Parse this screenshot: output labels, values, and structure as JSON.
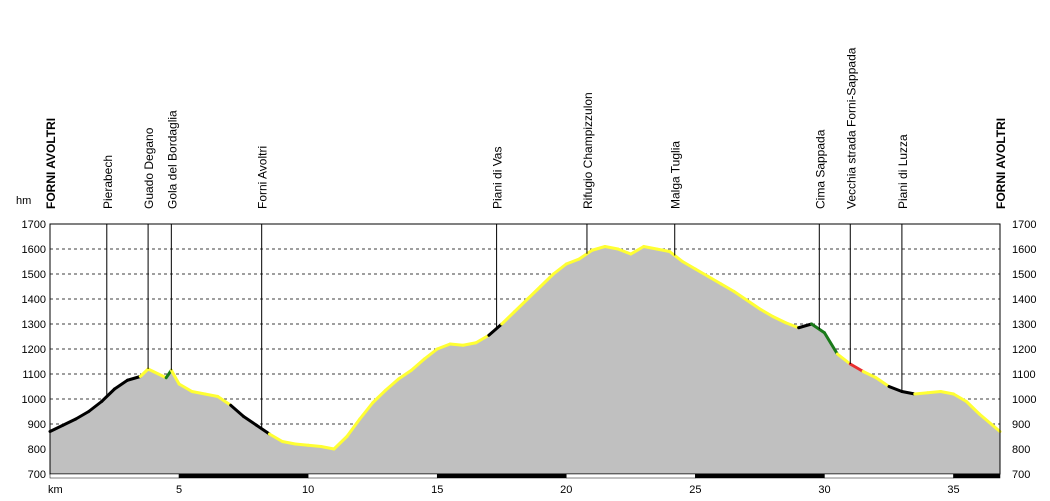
{
  "chart_data": {
    "type": "area",
    "title": "",
    "xlabel": "km",
    "ylabel": "hm",
    "xlim": [
      0,
      36.8
    ],
    "ylim": [
      700,
      1700
    ],
    "x_ticks": [
      5,
      10,
      15,
      20,
      25,
      30,
      35
    ],
    "y_ticks": [
      700,
      800,
      900,
      1000,
      1100,
      1200,
      1300,
      1400,
      1500,
      1600,
      1700
    ],
    "grid": true,
    "colors": {
      "fill": "#c0c0c0",
      "easy_segment": "#ffff33",
      "moderate_segment": "#000000",
      "steep_segment": "#1a7a1a",
      "hard_segment": "#e83030",
      "plot_border": "#000000",
      "gridline": "#000000"
    },
    "waypoints": [
      {
        "name": "FORNI AVOLTRI",
        "km": 0,
        "bold": true
      },
      {
        "name": "Pierabech",
        "km": 2.2
      },
      {
        "name": "Guado Degano",
        "km": 3.8
      },
      {
        "name": "Gola del Bordaglia",
        "km": 4.7
      },
      {
        "name": "Forni Avoltri",
        "km": 8.2
      },
      {
        "name": "Piani di Vas",
        "km": 17.3
      },
      {
        "name": "Rifugio Champizzulon",
        "km": 20.8
      },
      {
        "name": "Malga Tuglia",
        "km": 24.2
      },
      {
        "name": "Cima Sappada",
        "km": 29.8
      },
      {
        "name": "Vecchia strada Forni-Sappada",
        "km": 31.0
      },
      {
        "name": "Piani di Luzza",
        "km": 33.0
      },
      {
        "name": "FORNI AVOLTRI",
        "km": 36.8,
        "bold": true
      }
    ],
    "series": [
      {
        "x": [
          0,
          0.5,
          1,
          1.5,
          2,
          2.5,
          3,
          3.5,
          3.8,
          4.2,
          4.5,
          4.7,
          5,
          5.5,
          6,
          6.5,
          7,
          7.5,
          8,
          8.5,
          9,
          9.5,
          10,
          10.5,
          11,
          11.5,
          12,
          12.5,
          13,
          13.5,
          14,
          14.5,
          15,
          15.5,
          16,
          16.5,
          17,
          17.5,
          18,
          18.5,
          19,
          19.5,
          20,
          20.5,
          21,
          21.5,
          22,
          22.5,
          23,
          23.5,
          24,
          24.5,
          25,
          25.5,
          26,
          26.5,
          27,
          27.5,
          28,
          28.5,
          29,
          29.5,
          30,
          30.5,
          31,
          31.5,
          32,
          32.5,
          33,
          33.5,
          34,
          34.5,
          35,
          35.5,
          36,
          36.8
        ],
        "values": [
          870,
          895,
          920,
          950,
          990,
          1040,
          1075,
          1090,
          1120,
          1100,
          1085,
          1115,
          1060,
          1030,
          1020,
          1010,
          975,
          930,
          895,
          860,
          830,
          820,
          815,
          810,
          800,
          850,
          920,
          985,
          1035,
          1080,
          1115,
          1160,
          1200,
          1220,
          1215,
          1225,
          1255,
          1300,
          1350,
          1400,
          1450,
          1500,
          1540,
          1560,
          1595,
          1610,
          1600,
          1580,
          1610,
          1600,
          1590,
          1550,
          1520,
          1490,
          1460,
          1430,
          1395,
          1360,
          1330,
          1305,
          1285,
          1300,
          1265,
          1180,
          1140,
          1110,
          1085,
          1050,
          1030,
          1020,
          1025,
          1030,
          1020,
          990,
          940,
          870
        ],
        "difficulty": [
          "moderate",
          "moderate",
          "moderate",
          "moderate",
          "moderate",
          "moderate",
          "moderate",
          "easy",
          "easy",
          "easy",
          "steep",
          "easy",
          "easy",
          "easy",
          "easy",
          "easy",
          "moderate",
          "moderate",
          "moderate",
          "easy",
          "easy",
          "easy",
          "easy",
          "easy",
          "easy",
          "easy",
          "easy",
          "easy",
          "easy",
          "easy",
          "easy",
          "easy",
          "easy",
          "easy",
          "easy",
          "easy",
          "moderate",
          "easy",
          "easy",
          "easy",
          "easy",
          "easy",
          "easy",
          "easy",
          "easy",
          "easy",
          "easy",
          "easy",
          "easy",
          "easy",
          "easy",
          "easy",
          "easy",
          "easy",
          "easy",
          "easy",
          "easy",
          "easy",
          "easy",
          "easy",
          "moderate",
          "steep",
          "steep",
          "easy",
          "hard",
          "easy",
          "easy",
          "moderate",
          "moderate",
          "easy",
          "easy",
          "easy",
          "easy",
          "easy",
          "easy"
        ]
      }
    ]
  }
}
